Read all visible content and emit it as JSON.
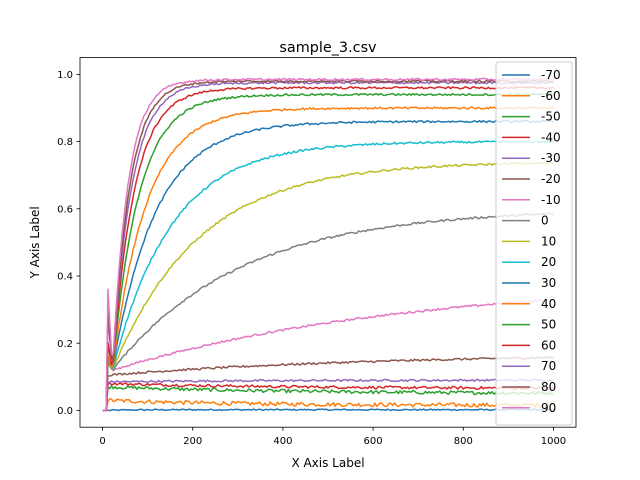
{
  "chart_data": {
    "type": "line",
    "title": "sample_3.csv",
    "xlabel": "X Axis Label",
    "ylabel": "Y Axis Label",
    "xlim": [
      -50,
      1050
    ],
    "ylim": [
      -0.05,
      1.05
    ],
    "xticks": [
      0,
      200,
      400,
      600,
      800,
      1000
    ],
    "yticks": [
      0.0,
      0.2,
      0.4,
      0.6,
      0.8,
      1.0
    ],
    "ytick_labels": [
      "0.0",
      "0.2",
      "0.4",
      "0.6",
      "0.8",
      "1.0"
    ],
    "legend_position": "right",
    "x_start": 0,
    "x_onset": 12,
    "x_end": 1000,
    "series": [
      {
        "name": "-70",
        "color": "#1f77b4",
        "final": 0.002,
        "initial": 0.0,
        "tau": 50,
        "noise": 0.002
      },
      {
        "name": "-60",
        "color": "#ff7f0e",
        "final": 0.015,
        "initial": 0.03,
        "tau": 300,
        "noise": 0.006
      },
      {
        "name": "-50",
        "color": "#2ca02c",
        "final": 0.05,
        "initial": 0.07,
        "tau": 400,
        "noise": 0.005
      },
      {
        "name": "-40",
        "color": "#d62728",
        "final": 0.065,
        "initial": 0.08,
        "tau": 400,
        "noise": 0.004
      },
      {
        "name": "-30",
        "color": "#9467bd",
        "final": 0.09,
        "initial": 0.085,
        "tau": 300,
        "noise": 0.003
      },
      {
        "name": "-20",
        "color": "#8c564b",
        "final": 0.17,
        "initial": 0.105,
        "tau": 600,
        "noise": 0.003
      },
      {
        "name": "-10",
        "color": "#e377c2",
        "final": 0.39,
        "initial": 0.14,
        "tau": 650,
        "noise": 0.003
      },
      {
        "name": "0",
        "color": "#7f7f7f",
        "final": 0.6,
        "initial": 0.14,
        "tau": 280,
        "noise": 0.003
      },
      {
        "name": "10",
        "color": "#bcbd22",
        "final": 0.74,
        "initial": 0.14,
        "tau": 190,
        "noise": 0.003
      },
      {
        "name": "20",
        "color": "#17becf",
        "final": 0.8,
        "initial": 0.15,
        "tau": 130,
        "noise": 0.003
      },
      {
        "name": "30",
        "color": "#1f77b4",
        "final": 0.86,
        "initial": 0.16,
        "tau": 95,
        "noise": 0.003
      },
      {
        "name": "40",
        "color": "#ff7f0e",
        "final": 0.9,
        "initial": 0.16,
        "tau": 75,
        "noise": 0.003
      },
      {
        "name": "50",
        "color": "#2ca02c",
        "final": 0.94,
        "initial": 0.2,
        "tau": 58,
        "noise": 0.003
      },
      {
        "name": "60",
        "color": "#d62728",
        "final": 0.96,
        "initial": 0.2,
        "tau": 48,
        "noise": 0.003
      },
      {
        "name": "70",
        "color": "#9467bd",
        "final": 0.975,
        "initial": 0.28,
        "tau": 42,
        "noise": 0.003
      },
      {
        "name": "80",
        "color": "#8c564b",
        "final": 0.98,
        "initial": 0.3,
        "tau": 38,
        "noise": 0.003
      },
      {
        "name": "90",
        "color": "#e377c2",
        "final": 0.985,
        "initial": 0.36,
        "tau": 34,
        "noise": 0.003
      }
    ]
  }
}
